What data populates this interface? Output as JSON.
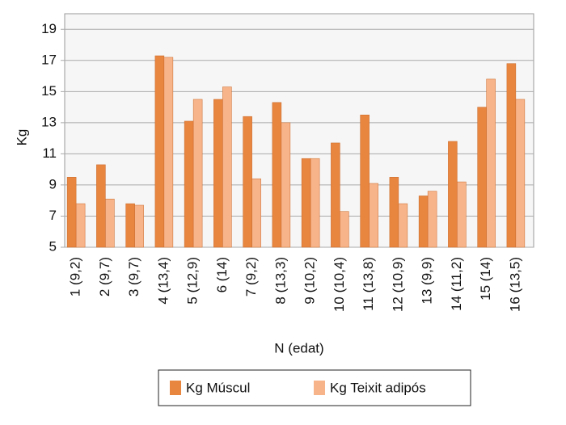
{
  "chart_data": {
    "type": "bar",
    "categories": [
      "1 (9,2)",
      "2 (9,7)",
      "3 (9,7)",
      "4 (13,4)",
      "5 (12,9)",
      "6 (14)",
      "7 (9,2)",
      "8 (13,3)",
      "9 (10,2)",
      "10 (10,4)",
      "11 (13,8)",
      "12 (10,9)",
      "13 (9,9)",
      "14 (11,2)",
      "15 (14)",
      "16 (13,5)"
    ],
    "series": [
      {
        "name": "Kg Múscul",
        "color": "#e8853f",
        "values": [
          9.5,
          10.3,
          7.8,
          17.3,
          13.1,
          14.5,
          13.4,
          14.3,
          10.7,
          11.7,
          13.5,
          9.5,
          8.3,
          11.8,
          14.0,
          16.8
        ]
      },
      {
        "name": "Kg Teixit adipós",
        "color": "#f7b48a",
        "values": [
          7.8,
          8.1,
          7.7,
          17.2,
          14.5,
          15.3,
          9.4,
          13.0,
          10.7,
          7.3,
          9.1,
          7.8,
          8.6,
          9.2,
          15.8,
          14.5
        ]
      }
    ],
    "xlabel": "N (edat)",
    "ylabel": "Kg",
    "ylim": [
      5,
      20
    ],
    "yticks": [
      5,
      7,
      9,
      11,
      13,
      15,
      17,
      19
    ],
    "grid": true,
    "legend": "bottom"
  }
}
